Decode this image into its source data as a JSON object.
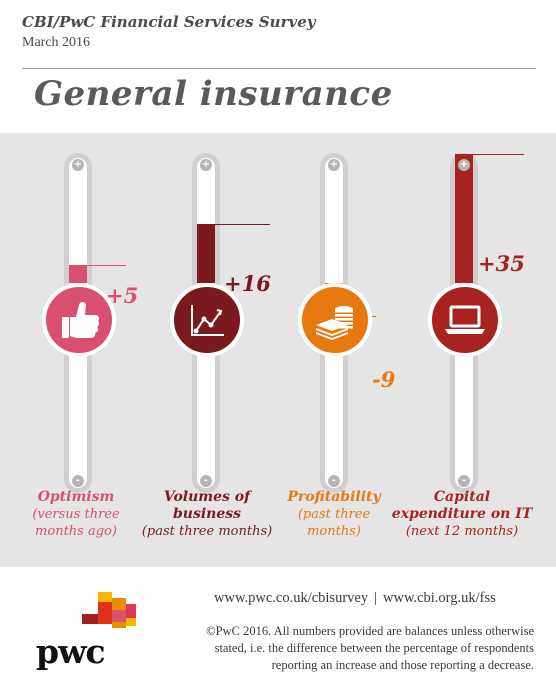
{
  "header": {
    "survey_title": "CBI/PwC Financial Services Survey",
    "date": "March 2016",
    "page_title": "General insurance"
  },
  "indicators": [
    {
      "key": "optimism",
      "value": 5,
      "value_label": "+5",
      "label_main": "Optimism",
      "label_sub_1": "(versus three",
      "label_sub_2": "months ago)",
      "color": "#d9506e",
      "icon": "thumbs-up-icon"
    },
    {
      "key": "volumes",
      "value": 16,
      "value_label": "+16",
      "label_main_1": "Volumes of",
      "label_main_2": "business",
      "label_sub": "(past three months)",
      "color": "#7a1a1f",
      "icon": "line-chart-icon"
    },
    {
      "key": "profitability",
      "value": -9,
      "value_label": "-9",
      "label_main": "Profitability",
      "label_sub_1": "(past three",
      "label_sub_2": "months)",
      "color": "#e8790f",
      "icon": "coins-icon"
    },
    {
      "key": "capex",
      "value": 35,
      "value_label": "+35",
      "label_main_1": "Capital",
      "label_main_2": "expenditure on IT",
      "label_sub": "(next 12 months)",
      "color": "#a8221f",
      "icon": "laptop-icon"
    }
  ],
  "knobs": {
    "plus": "+",
    "minus": "-"
  },
  "footer": {
    "link_pwc": "www.pwc.co.uk/cbisurvey",
    "separator": "|",
    "link_cbi": "www.cbi.org.uk/fss",
    "note_1": "©PwC 2016. All numbers provided are balances unless otherwise",
    "note_2": "stated, i.e. the difference between the percentage of respondents",
    "note_3": "reporting an increase and those reporting a decrease.",
    "logo_text": "pwc"
  }
}
